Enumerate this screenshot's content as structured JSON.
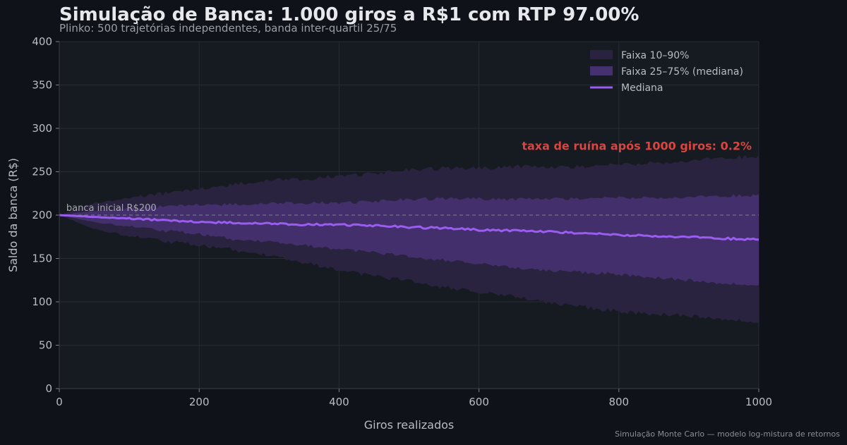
{
  "title": "Simulação de Banca: 1.000 giros a R$1 com RTP 97.00%",
  "subtitle": "Plinko: 500 trajetórias independentes, banda inter-quartil 25/75",
  "footer": "Simulação Monte Carlo — modelo log-mistura de retornos",
  "colors": {
    "background": "#0f1218",
    "plot_background": "#161a21",
    "band_10_90": "#2a2340",
    "band_25_75": "#463170",
    "median": "#9b5cf0",
    "ruin_text": "#d9453f",
    "reference_line": "#7d7f88"
  },
  "chart_data": {
    "type": "area",
    "xlabel": "Giros realizados",
    "ylabel": "Saldo da banca (R$)",
    "xlim": [
      0,
      1000
    ],
    "ylim": [
      0,
      400
    ],
    "xticks": [
      0,
      200,
      400,
      600,
      800,
      1000
    ],
    "yticks": [
      0,
      50,
      100,
      150,
      200,
      250,
      300,
      350,
      400
    ],
    "grid": true,
    "legend_position": "top-right",
    "x": [
      0,
      50,
      100,
      150,
      200,
      250,
      300,
      350,
      400,
      450,
      500,
      550,
      600,
      650,
      700,
      750,
      800,
      850,
      900,
      950,
      1000
    ],
    "series": [
      {
        "name": "Faixa 10–90%",
        "kind": "band",
        "lower": [
          200,
          184,
          176,
          170,
          165,
          160,
          153,
          145,
          137,
          130,
          124,
          117,
          111,
          106,
          99,
          94,
          89,
          86,
          84,
          80,
          77
        ],
        "upper": [
          200,
          214,
          220,
          225,
          230,
          235,
          240,
          241,
          245,
          248,
          252,
          254,
          254,
          256,
          255,
          256,
          258,
          260,
          263,
          266,
          268
        ]
      },
      {
        "name": "Faixa 25–75% (mediana)",
        "kind": "band",
        "lower": [
          200,
          192,
          187,
          182,
          178,
          172,
          169,
          165,
          161,
          157,
          152,
          148,
          144,
          139,
          136,
          134,
          132,
          128,
          125,
          121,
          120
        ],
        "upper": [
          200,
          205,
          208,
          210,
          212,
          212,
          213,
          214,
          214,
          216,
          218,
          219,
          219,
          218,
          219,
          219,
          220,
          220,
          221,
          222,
          223
        ]
      },
      {
        "name": "Mediana",
        "kind": "line",
        "values": [
          200,
          198,
          196,
          194,
          192,
          191,
          190,
          189,
          189,
          188,
          186,
          185,
          183,
          182,
          181,
          179,
          177,
          176,
          175,
          173,
          172
        ]
      }
    ],
    "reference_line": {
      "y": 200,
      "label": "banca inicial R$200"
    },
    "annotation": {
      "text": "taxa de ruína após 1000 giros: 0.2%",
      "x": 1000,
      "y": 280
    }
  }
}
